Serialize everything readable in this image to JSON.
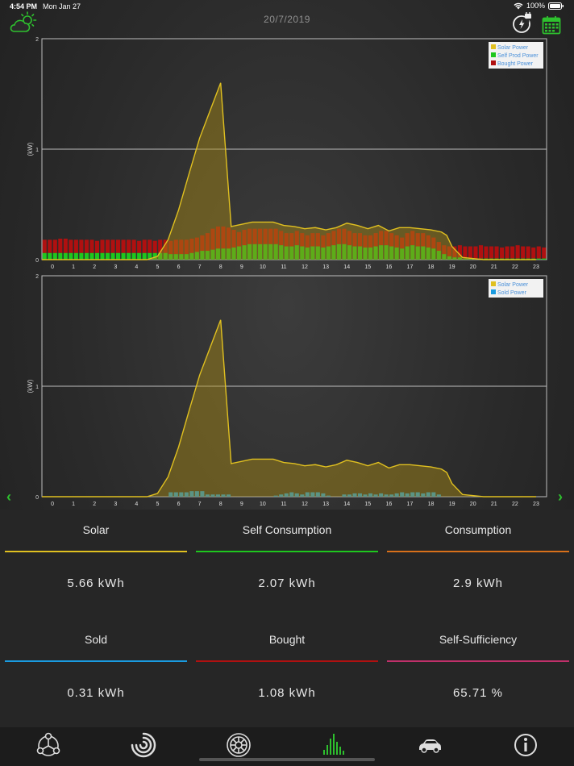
{
  "status_bar": {
    "time": "4:54 PM",
    "date": "Mon Jan 27",
    "battery": "100%"
  },
  "header": {
    "date": "20/7/2019"
  },
  "colors": {
    "solar": "#e0c020",
    "self": "#1ec71e",
    "bought": "#b01010",
    "sold": "#1a9be0",
    "consumption": "#d8701a",
    "self_sufficiency": "#c0306a",
    "accent": "#2ec02e"
  },
  "icons": {
    "weather": "partly-cloudy-icon",
    "charger": "ev-charger-icon",
    "calendar": "calendar-icon",
    "prev": "chevron-left-icon",
    "next": "chevron-right-icon"
  },
  "chart_data": [
    {
      "type": "area",
      "ylabel": "(kW)",
      "ylim": [
        0,
        2
      ],
      "yticks": [
        "0",
        "1",
        "2"
      ],
      "xticks": [
        "0",
        "1",
        "2",
        "3",
        "4",
        "5",
        "6",
        "7",
        "8",
        "9",
        "10",
        "11",
        "12",
        "13",
        "14",
        "15",
        "16",
        "17",
        "18",
        "19",
        "20",
        "21",
        "22",
        "23"
      ],
      "legend_position": "top-right",
      "grid": true,
      "solar_x": [
        0,
        5,
        5.5,
        6,
        6.5,
        7,
        7.5,
        8,
        8.5,
        8.75,
        9,
        9.5,
        10,
        10.5,
        11,
        11.5,
        12,
        12.5,
        13,
        13.5,
        14,
        14.5,
        15,
        15.5,
        16,
        16.5,
        17,
        17.5,
        18,
        18.5,
        19,
        19.25,
        19.5,
        20,
        21,
        22,
        23.5
      ],
      "solar_y": [
        0,
        0,
        0.03,
        0.18,
        0.45,
        0.78,
        1.1,
        1.35,
        1.6,
        0.95,
        0.3,
        0.32,
        0.34,
        0.34,
        0.34,
        0.31,
        0.3,
        0.28,
        0.29,
        0.27,
        0.29,
        0.33,
        0.31,
        0.28,
        0.31,
        0.26,
        0.29,
        0.29,
        0.28,
        0.27,
        0.25,
        0.22,
        0.12,
        0.02,
        0,
        0,
        0
      ],
      "series": [
        {
          "name": "Solar Power",
          "color": "#e0c020"
        },
        {
          "name": "Self Prod Power",
          "color": "#1ec71e"
        },
        {
          "name": "Bought Power",
          "color": "#b01010"
        }
      ],
      "self_values": [
        0.06,
        0.06,
        0.06,
        0.06,
        0.06,
        0.06,
        0.06,
        0.06,
        0.06,
        0.06,
        0.06,
        0.06,
        0.06,
        0.06,
        0.06,
        0.06,
        0.06,
        0.06,
        0.06,
        0.06,
        0.06,
        0.06,
        0.06,
        0.06,
        0.05,
        0.05,
        0.05,
        0.05,
        0.06,
        0.07,
        0.08,
        0.08,
        0.09,
        0.1,
        0.1,
        0.1,
        0.11,
        0.12,
        0.13,
        0.14,
        0.14,
        0.14,
        0.14,
        0.14,
        0.14,
        0.13,
        0.12,
        0.12,
        0.13,
        0.12,
        0.11,
        0.12,
        0.12,
        0.11,
        0.12,
        0.13,
        0.14,
        0.14,
        0.13,
        0.12,
        0.12,
        0.11,
        0.11,
        0.12,
        0.13,
        0.13,
        0.12,
        0.11,
        0.1,
        0.12,
        0.13,
        0.12,
        0.12,
        0.11,
        0.1,
        0.08,
        0.05,
        0.03,
        0.02,
        0.02,
        0.01,
        0.01,
        0.01,
        0.01,
        0.01,
        0.01,
        0.01,
        0.01,
        0.01,
        0.01,
        0.01,
        0.01,
        0.01,
        0.01,
        0.01,
        0.01
      ],
      "bought_values": [
        0.12,
        0.12,
        0.12,
        0.13,
        0.13,
        0.12,
        0.12,
        0.12,
        0.12,
        0.12,
        0.11,
        0.12,
        0.12,
        0.12,
        0.12,
        0.12,
        0.12,
        0.12,
        0.11,
        0.12,
        0.12,
        0.11,
        0.12,
        0.12,
        0.12,
        0.13,
        0.13,
        0.13,
        0.13,
        0.13,
        0.14,
        0.16,
        0.19,
        0.2,
        0.2,
        0.19,
        0.16,
        0.13,
        0.14,
        0.14,
        0.14,
        0.14,
        0.14,
        0.14,
        0.14,
        0.13,
        0.12,
        0.12,
        0.13,
        0.12,
        0.11,
        0.12,
        0.12,
        0.11,
        0.12,
        0.13,
        0.14,
        0.14,
        0.13,
        0.12,
        0.12,
        0.11,
        0.11,
        0.12,
        0.13,
        0.13,
        0.12,
        0.11,
        0.1,
        0.12,
        0.13,
        0.12,
        0.12,
        0.11,
        0.1,
        0.08,
        0.08,
        0.09,
        0.1,
        0.11,
        0.11,
        0.11,
        0.11,
        0.12,
        0.11,
        0.11,
        0.11,
        0.1,
        0.11,
        0.11,
        0.12,
        0.11,
        0.11,
        0.1,
        0.11,
        0.1
      ]
    },
    {
      "type": "area",
      "ylabel": "(kW)",
      "ylim": [
        0,
        2
      ],
      "yticks": [
        "0",
        "1",
        "2"
      ],
      "xticks": [
        "0",
        "1",
        "2",
        "3",
        "4",
        "5",
        "6",
        "7",
        "8",
        "9",
        "10",
        "11",
        "12",
        "13",
        "14",
        "15",
        "16",
        "17",
        "18",
        "19",
        "20",
        "21",
        "22",
        "23"
      ],
      "legend_position": "top-right",
      "grid": true,
      "solar_x": [
        0,
        5,
        5.5,
        6,
        6.5,
        7,
        7.5,
        8,
        8.5,
        8.75,
        9,
        9.5,
        10,
        10.5,
        11,
        11.5,
        12,
        12.5,
        13,
        13.5,
        14,
        14.5,
        15,
        15.5,
        16,
        16.5,
        17,
        17.5,
        18,
        18.5,
        19,
        19.25,
        19.5,
        20,
        21,
        22,
        23.5
      ],
      "solar_y": [
        0,
        0,
        0.03,
        0.18,
        0.45,
        0.78,
        1.1,
        1.35,
        1.6,
        0.95,
        0.3,
        0.32,
        0.34,
        0.34,
        0.34,
        0.31,
        0.3,
        0.28,
        0.29,
        0.27,
        0.29,
        0.33,
        0.31,
        0.28,
        0.31,
        0.26,
        0.29,
        0.29,
        0.28,
        0.27,
        0.25,
        0.22,
        0.12,
        0.02,
        0,
        0,
        0
      ],
      "series": [
        {
          "name": "Solar Power",
          "color": "#e0c020"
        },
        {
          "name": "Sold Power",
          "color": "#1a9be0"
        }
      ],
      "sold_values": [
        0,
        0,
        0,
        0,
        0,
        0,
        0,
        0,
        0,
        0,
        0,
        0,
        0,
        0,
        0,
        0,
        0,
        0,
        0,
        0,
        0,
        0,
        0,
        0,
        0.04,
        0.04,
        0.04,
        0.04,
        0.05,
        0.05,
        0.05,
        0.02,
        0.02,
        0.02,
        0.02,
        0.02,
        0,
        0,
        0,
        0,
        0,
        0,
        0,
        0,
        0.01,
        0.02,
        0.03,
        0.04,
        0.03,
        0.02,
        0.04,
        0.04,
        0.04,
        0.03,
        0.01,
        0,
        0,
        0.02,
        0.02,
        0.03,
        0.03,
        0.02,
        0.03,
        0.02,
        0.03,
        0.02,
        0.02,
        0.03,
        0.04,
        0.03,
        0.04,
        0.04,
        0.03,
        0.04,
        0.04,
        0.02,
        0,
        0,
        0,
        0,
        0,
        0,
        0,
        0,
        0,
        0,
        0,
        0,
        0,
        0,
        0,
        0,
        0,
        0,
        0,
        0
      ]
    }
  ],
  "stats": [
    {
      "label": "Solar",
      "value": "5.66 kWh",
      "color": "#e0c020"
    },
    {
      "label": "Self Consumption",
      "value": "2.07 kWh",
      "color": "#1ec71e"
    },
    {
      "label": "Consumption",
      "value": "2.9 kWh",
      "color": "#d8701a"
    },
    {
      "label": "Sold",
      "value": "0.31 kWh",
      "color": "#1a9be0"
    },
    {
      "label": "Bought",
      "value": "1.08 kWh",
      "color": "#b01010"
    },
    {
      "label": "Self-Sufficiency",
      "value": "65.71 %",
      "color": "#c0306a"
    }
  ],
  "tabbar": [
    {
      "name": "system-icon"
    },
    {
      "name": "gauge-icon"
    },
    {
      "name": "wheel-icon"
    },
    {
      "name": "bar-history-icon",
      "active": true
    },
    {
      "name": "car-icon"
    },
    {
      "name": "info-icon"
    }
  ]
}
